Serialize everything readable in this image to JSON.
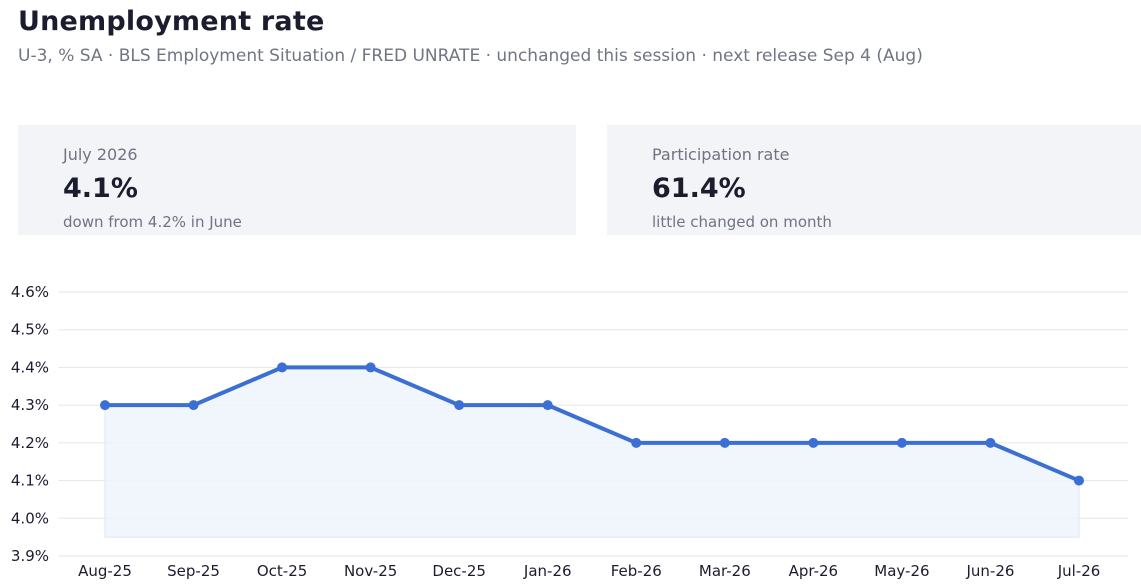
{
  "header": {
    "title": "Unemployment rate",
    "subtitle": "U-3, % SA · BLS Employment Situation / FRED UNRATE · unchanged this session · next release Sep 4 (Aug)"
  },
  "cards": [
    {
      "label": "July 2026",
      "value": "4.1%",
      "note": "down from 4.2% in June"
    },
    {
      "label": "Participation rate",
      "value": "61.4%",
      "note": "little changed on month"
    }
  ],
  "colors": {
    "line": "#3b6fd4",
    "area": "#eef3fc",
    "grid": "#e4e6ec"
  },
  "chart_data": {
    "type": "area",
    "categories": [
      "Aug-25",
      "Sep-25",
      "Oct-25",
      "Nov-25",
      "Dec-25",
      "Jan-26",
      "Feb-26",
      "Mar-26",
      "Apr-26",
      "May-26",
      "Jun-26",
      "Jul-26"
    ],
    "series": [
      {
        "values": [
          4.3,
          4.3,
          4.4,
          4.4,
          4.3,
          4.3,
          4.2,
          4.2,
          4.2,
          4.2,
          4.2,
          4.1
        ]
      }
    ],
    "ylim": [
      3.9,
      4.6
    ],
    "yticks": [
      "3.9%",
      "4.0%",
      "4.1%",
      "4.2%",
      "4.3%",
      "4.4%",
      "4.5%",
      "4.6%"
    ],
    "area_base": 3.95,
    "grid": true
  }
}
